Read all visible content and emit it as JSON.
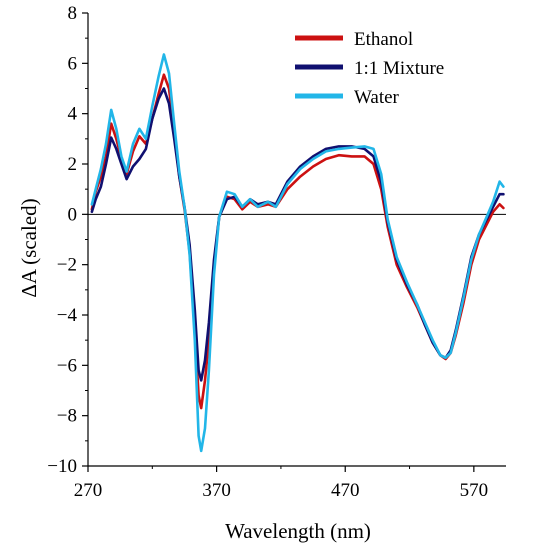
{
  "chart_data": {
    "type": "line",
    "xlabel": "Wavelength (nm)",
    "ylabel": "ΔA (scaled)",
    "xlim": [
      270,
      595
    ],
    "ylim": [
      -10,
      8
    ],
    "xticks": [
      270,
      370,
      470,
      570
    ],
    "yticks": [
      8,
      6,
      4,
      2,
      0,
      -2,
      -4,
      -6,
      -8,
      -10
    ],
    "x_tick_labels": [
      "270",
      "370",
      "470",
      "570"
    ],
    "y_tick_labels": [
      "8",
      "6",
      "4",
      "2",
      "0",
      "−2",
      "−4",
      "−6",
      "−8",
      "−10"
    ],
    "zero_line": true,
    "grid": false,
    "legend_position": "top-right",
    "series": [
      {
        "name": "Ethanol",
        "color": "#cc1111",
        "points": [
          [
            273,
            0.2
          ],
          [
            276,
            0.9
          ],
          [
            280,
            1.5
          ],
          [
            284,
            2.3
          ],
          [
            288,
            3.6
          ],
          [
            292,
            3.0
          ],
          [
            296,
            2.2
          ],
          [
            300,
            1.6
          ],
          [
            305,
            2.5
          ],
          [
            310,
            3.1
          ],
          [
            315,
            2.8
          ],
          [
            320,
            3.8
          ],
          [
            325,
            4.8
          ],
          [
            329,
            5.55
          ],
          [
            333,
            5.0
          ],
          [
            337,
            3.3
          ],
          [
            341,
            1.5
          ],
          [
            345,
            0.2
          ],
          [
            349,
            -1.5
          ],
          [
            353,
            -4.5
          ],
          [
            356,
            -7.2
          ],
          [
            358,
            -7.7
          ],
          [
            361,
            -6.6
          ],
          [
            364,
            -5.0
          ],
          [
            368,
            -2.0
          ],
          [
            372,
            -0.1
          ],
          [
            378,
            0.7
          ],
          [
            384,
            0.6
          ],
          [
            390,
            0.2
          ],
          [
            396,
            0.5
          ],
          [
            402,
            0.3
          ],
          [
            410,
            0.4
          ],
          [
            416,
            0.3
          ],
          [
            425,
            1.0
          ],
          [
            435,
            1.5
          ],
          [
            445,
            1.9
          ],
          [
            455,
            2.2
          ],
          [
            465,
            2.35
          ],
          [
            475,
            2.3
          ],
          [
            485,
            2.3
          ],
          [
            492,
            2.0
          ],
          [
            498,
            1.0
          ],
          [
            503,
            -0.5
          ],
          [
            510,
            -2.0
          ],
          [
            518,
            -2.9
          ],
          [
            526,
            -3.7
          ],
          [
            532,
            -4.4
          ],
          [
            538,
            -5.1
          ],
          [
            544,
            -5.6
          ],
          [
            548,
            -5.75
          ],
          [
            552,
            -5.5
          ],
          [
            556,
            -4.8
          ],
          [
            562,
            -3.5
          ],
          [
            568,
            -2.0
          ],
          [
            574,
            -1.0
          ],
          [
            580,
            -0.4
          ],
          [
            585,
            0.1
          ],
          [
            590,
            0.4
          ],
          [
            593,
            0.25
          ]
        ]
      },
      {
        "name": "1:1 Mixture",
        "color": "#101070",
        "points": [
          [
            273,
            0.1
          ],
          [
            276,
            0.6
          ],
          [
            280,
            1.1
          ],
          [
            284,
            2.0
          ],
          [
            288,
            3.05
          ],
          [
            292,
            2.6
          ],
          [
            296,
            2.0
          ],
          [
            300,
            1.4
          ],
          [
            305,
            1.9
          ],
          [
            310,
            2.2
          ],
          [
            315,
            2.6
          ],
          [
            320,
            3.8
          ],
          [
            325,
            4.6
          ],
          [
            329,
            5.0
          ],
          [
            333,
            4.4
          ],
          [
            337,
            3.0
          ],
          [
            341,
            1.5
          ],
          [
            345,
            0.3
          ],
          [
            349,
            -1.2
          ],
          [
            353,
            -3.8
          ],
          [
            356,
            -6.2
          ],
          [
            358,
            -6.6
          ],
          [
            361,
            -5.8
          ],
          [
            364,
            -4.3
          ],
          [
            368,
            -1.8
          ],
          [
            372,
            -0.1
          ],
          [
            378,
            0.6
          ],
          [
            384,
            0.7
          ],
          [
            390,
            0.3
          ],
          [
            396,
            0.6
          ],
          [
            402,
            0.4
          ],
          [
            410,
            0.5
          ],
          [
            416,
            0.4
          ],
          [
            425,
            1.3
          ],
          [
            435,
            1.9
          ],
          [
            445,
            2.3
          ],
          [
            455,
            2.6
          ],
          [
            465,
            2.7
          ],
          [
            475,
            2.7
          ],
          [
            485,
            2.6
          ],
          [
            492,
            2.3
          ],
          [
            498,
            1.3
          ],
          [
            503,
            -0.3
          ],
          [
            510,
            -1.8
          ],
          [
            518,
            -2.8
          ],
          [
            526,
            -3.6
          ],
          [
            532,
            -4.4
          ],
          [
            538,
            -5.1
          ],
          [
            544,
            -5.6
          ],
          [
            548,
            -5.7
          ],
          [
            552,
            -5.4
          ],
          [
            556,
            -4.6
          ],
          [
            562,
            -3.2
          ],
          [
            568,
            -1.7
          ],
          [
            574,
            -0.8
          ],
          [
            580,
            -0.2
          ],
          [
            585,
            0.3
          ],
          [
            590,
            0.8
          ],
          [
            593,
            0.8
          ]
        ]
      },
      {
        "name": "Water",
        "color": "#22b6e8",
        "points": [
          [
            273,
            0.4
          ],
          [
            276,
            1.0
          ],
          [
            280,
            1.8
          ],
          [
            284,
            2.8
          ],
          [
            288,
            4.15
          ],
          [
            292,
            3.4
          ],
          [
            296,
            2.3
          ],
          [
            300,
            1.7
          ],
          [
            305,
            2.8
          ],
          [
            310,
            3.4
          ],
          [
            315,
            3.0
          ],
          [
            320,
            4.3
          ],
          [
            325,
            5.5
          ],
          [
            329,
            6.35
          ],
          [
            333,
            5.6
          ],
          [
            337,
            3.6
          ],
          [
            341,
            1.7
          ],
          [
            345,
            0.3
          ],
          [
            349,
            -1.6
          ],
          [
            353,
            -5.0
          ],
          [
            356,
            -8.8
          ],
          [
            358,
            -9.4
          ],
          [
            361,
            -8.5
          ],
          [
            364,
            -6.2
          ],
          [
            368,
            -2.4
          ],
          [
            372,
            -0.1
          ],
          [
            378,
            0.9
          ],
          [
            384,
            0.8
          ],
          [
            390,
            0.3
          ],
          [
            396,
            0.6
          ],
          [
            402,
            0.3
          ],
          [
            410,
            0.5
          ],
          [
            416,
            0.3
          ],
          [
            425,
            1.2
          ],
          [
            435,
            1.8
          ],
          [
            445,
            2.2
          ],
          [
            455,
            2.5
          ],
          [
            465,
            2.6
          ],
          [
            475,
            2.65
          ],
          [
            485,
            2.7
          ],
          [
            492,
            2.6
          ],
          [
            498,
            1.6
          ],
          [
            503,
            -0.2
          ],
          [
            510,
            -1.7
          ],
          [
            518,
            -2.7
          ],
          [
            526,
            -3.6
          ],
          [
            532,
            -4.3
          ],
          [
            538,
            -5.0
          ],
          [
            544,
            -5.6
          ],
          [
            548,
            -5.7
          ],
          [
            552,
            -5.5
          ],
          [
            556,
            -4.7
          ],
          [
            562,
            -3.3
          ],
          [
            568,
            -1.8
          ],
          [
            574,
            -0.8
          ],
          [
            580,
            -0.1
          ],
          [
            585,
            0.5
          ],
          [
            590,
            1.3
          ],
          [
            593,
            1.1
          ]
        ]
      }
    ]
  }
}
